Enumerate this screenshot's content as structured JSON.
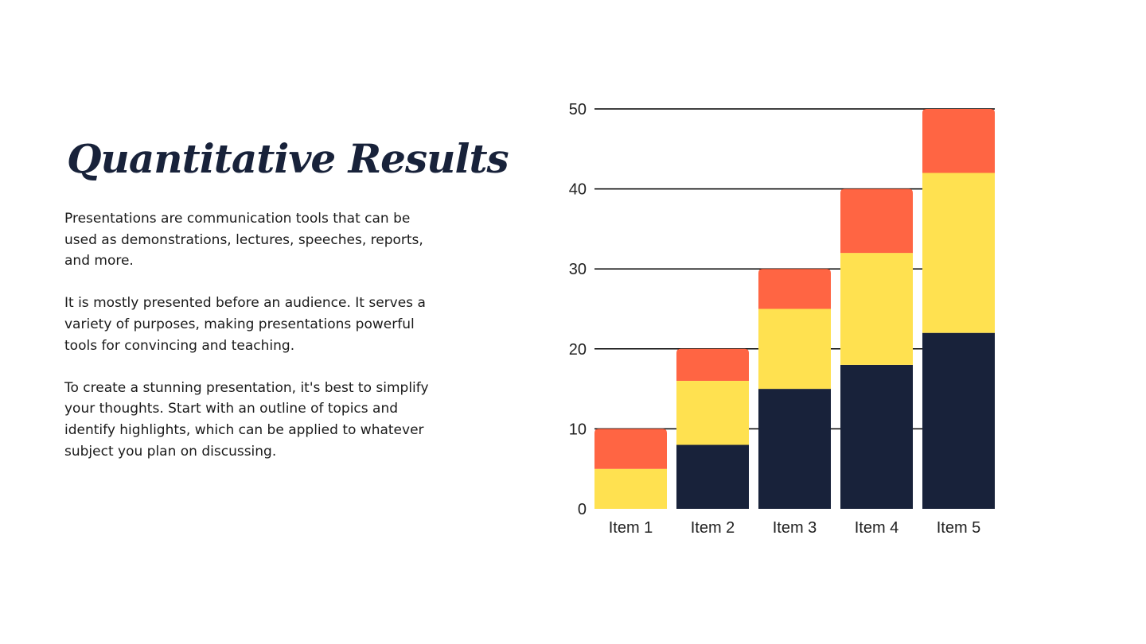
{
  "slide": {
    "title": "Quantitative Results",
    "paragraphs": [
      "Presentations are communication tools that can be used as demonstrations, lectures, speeches, reports, and more.",
      "It is mostly presented before an audience. It serves a variety of purposes, making presentations powerful tools for convincing and teaching.",
      "To create a stunning presentation, it's best to simplify your thoughts. Start with an outline of topics and identify highlights, which can be applied to whatever subject you plan on discussing."
    ]
  },
  "colors": {
    "title": "#18223a",
    "text": "#1a1a1a",
    "gridline": "#000000"
  },
  "chart_data": {
    "type": "bar",
    "stacked": true,
    "categories": [
      "Item 1",
      "Item 2",
      "Item 3",
      "Item 4",
      "Item 5"
    ],
    "series": [
      {
        "color": "#18223a",
        "values": [
          0,
          8,
          15,
          18,
          22
        ]
      },
      {
        "color": "#ffe150",
        "values": [
          5,
          8,
          10,
          14,
          20
        ]
      },
      {
        "color": "#ff6543",
        "values": [
          5,
          4,
          5,
          8,
          8
        ]
      }
    ],
    "yticks": [
      0,
      10,
      20,
      30,
      40,
      50
    ],
    "ylim": [
      0,
      50
    ],
    "grid": true,
    "legend": "none",
    "title": "",
    "xlabel": "",
    "ylabel": ""
  }
}
